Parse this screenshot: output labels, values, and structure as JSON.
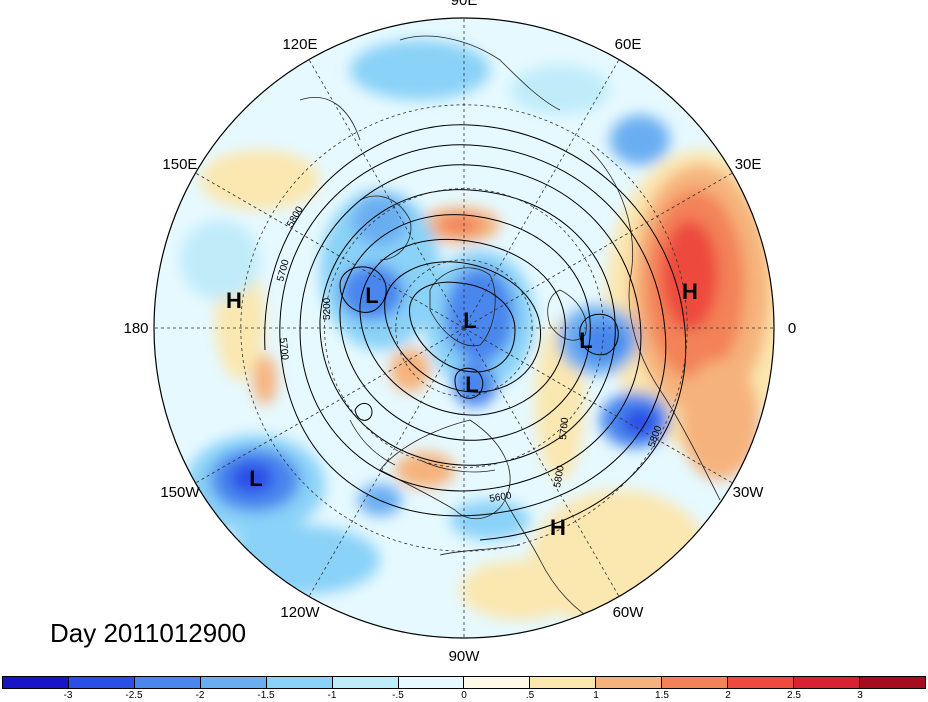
{
  "map": {
    "title": "Day 2011012900",
    "longitude_labels": [
      {
        "text": "90E",
        "lon": 90
      },
      {
        "text": "60E",
        "lon": 60
      },
      {
        "text": "30E",
        "lon": 30
      },
      {
        "text": "0",
        "lon": 0
      },
      {
        "text": "30W",
        "lon": -30
      },
      {
        "text": "60W",
        "lon": -60
      },
      {
        "text": "90W",
        "lon": -90
      },
      {
        "text": "120W",
        "lon": -120
      },
      {
        "text": "150W",
        "lon": -150
      },
      {
        "text": "180",
        "lon": 180
      },
      {
        "text": "150E",
        "lon": 150
      },
      {
        "text": "120E",
        "lon": 120
      }
    ],
    "pressure_centers": [
      {
        "type": "H",
        "label": "H"
      },
      {
        "type": "H",
        "label": "H"
      },
      {
        "type": "H",
        "label": "H"
      },
      {
        "type": "L",
        "label": "L"
      },
      {
        "type": "L",
        "label": "L"
      },
      {
        "type": "L",
        "label": "L"
      },
      {
        "type": "L",
        "label": "L"
      },
      {
        "type": "L",
        "label": "L"
      }
    ],
    "contour_labels": [
      "5800",
      "5700",
      "5700",
      "5200",
      "5700",
      "5800",
      "5600",
      "5800"
    ]
  },
  "colorbar": {
    "colors": [
      "#1a14c8",
      "#2a4ee6",
      "#4a86ee",
      "#6aaef2",
      "#8ad2f8",
      "#c0ecfa",
      "#e6f9ff",
      "#fffbe8",
      "#fbe7b0",
      "#f6b27c",
      "#f38258",
      "#ee4a3e",
      "#d62232",
      "#a50c20"
    ],
    "ticks": [
      "-3",
      "-2.5",
      "-2",
      "-1.5",
      "-1",
      "-.5",
      "0",
      ".5",
      "1",
      "1.5",
      "2",
      "2.5",
      "3"
    ]
  }
}
